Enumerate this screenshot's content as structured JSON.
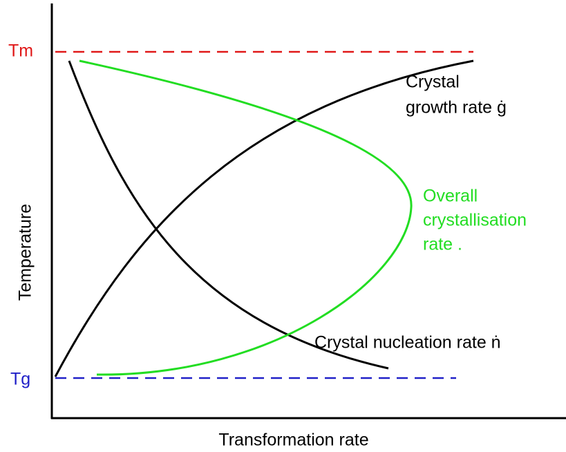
{
  "axes": {
    "y_label": "Temperature",
    "x_label": "Transformation rate"
  },
  "levels": {
    "tm": "Tm",
    "tg": "Tg"
  },
  "curves": [
    {
      "label_lines": [
        "Crystal",
        "growth rate ġ"
      ]
    },
    {
      "label_lines": [
        "Overall",
        "crystallisation",
        "rate ."
      ]
    },
    {
      "label_lines": [
        "Crystal nucleation rate ṅ"
      ]
    }
  ]
}
